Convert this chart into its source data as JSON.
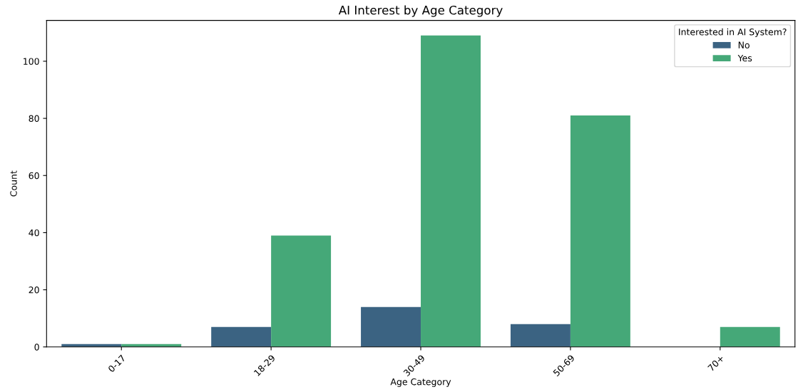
{
  "chart_data": {
    "type": "bar",
    "title": "AI Interest by Age Category",
    "xlabel": "Age Category",
    "ylabel": "Count",
    "categories": [
      "0-17",
      "18-29",
      "30-49",
      "50-69",
      "70+"
    ],
    "series": [
      {
        "name": "No",
        "color": "#3b6382",
        "values": [
          1,
          7,
          14,
          8,
          0
        ]
      },
      {
        "name": "Yes",
        "color": "#45a878",
        "values": [
          1,
          39,
          109,
          81,
          7
        ]
      }
    ],
    "legend_title": "Interested in AI System?",
    "legend": "top right",
    "ylim": [
      0,
      114.3
    ],
    "yticks": [
      0,
      20,
      40,
      60,
      80,
      100
    ],
    "grid": false
  }
}
